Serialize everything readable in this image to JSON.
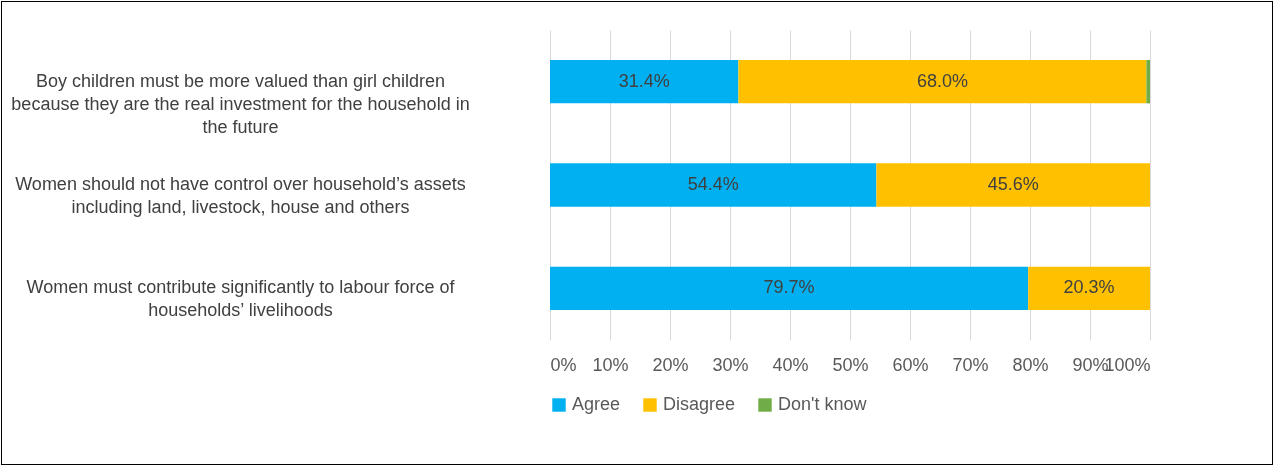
{
  "chart_data": {
    "type": "bar",
    "orientation": "horizontal",
    "stacked": true,
    "categories": [
      "Boy children must be more valued than girl children because they are the real investment for the household in the future",
      "Women should not have control over household’s assets including land, livestock, house and others",
      "Women must contribute significantly to labour force of households’ livelihoods"
    ],
    "series": [
      {
        "name": "Agree",
        "color": "#00b0f0",
        "values": [
          31.4,
          54.4,
          79.7
        ],
        "value_labels": [
          "31.4%",
          "54.4%",
          "79.7%"
        ]
      },
      {
        "name": "Disagree",
        "color": "#ffc000",
        "values": [
          68.0,
          45.6,
          20.3
        ],
        "value_labels": [
          "68.0%",
          "45.6%",
          "20.3%"
        ]
      },
      {
        "name": "Don't know",
        "color": "#70ad47",
        "values": [
          0.6,
          0,
          0
        ],
        "value_labels": [
          null,
          null,
          null
        ]
      }
    ],
    "xlim": [
      0,
      100
    ],
    "xticks": [
      {
        "value": 0,
        "label": "0%"
      },
      {
        "value": 10,
        "label": "10%"
      },
      {
        "value": 20,
        "label": "20%"
      },
      {
        "value": 30,
        "label": "30%"
      },
      {
        "value": 40,
        "label": "40%"
      },
      {
        "value": 50,
        "label": "50%"
      },
      {
        "value": 60,
        "label": "60%"
      },
      {
        "value": 70,
        "label": "70%"
      },
      {
        "value": 80,
        "label": "80%"
      },
      {
        "value": 90,
        "label": "90%"
      },
      {
        "value": 100,
        "label": "100%"
      }
    ],
    "grid": "x",
    "legend": "bottom"
  }
}
